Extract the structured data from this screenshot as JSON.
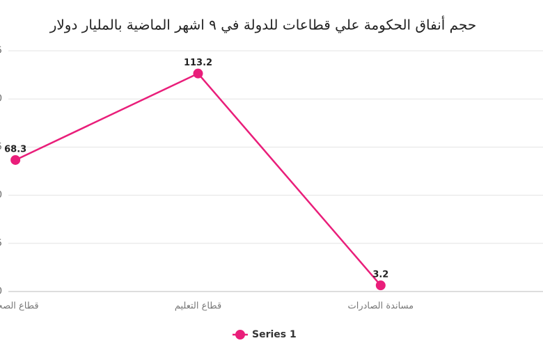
{
  "chart_data": {
    "type": "line",
    "title": "حجم أنفاق الحكومة علي قطاعات للدولة في ٩ اشهر الماضية بالمليار دولار",
    "categories": [
      "قطاع الصحة",
      "قطاع التعليم",
      "مساندة الصادرات"
    ],
    "series": [
      {
        "name": "Series 1",
        "color": "#e91e7a",
        "values": [
          68.3,
          113.2,
          3.2
        ]
      }
    ],
    "ylim": [
      0,
      125
    ],
    "yticks": [
      0,
      25,
      50,
      75,
      100,
      125
    ],
    "grid": true,
    "legend": "bottom"
  }
}
